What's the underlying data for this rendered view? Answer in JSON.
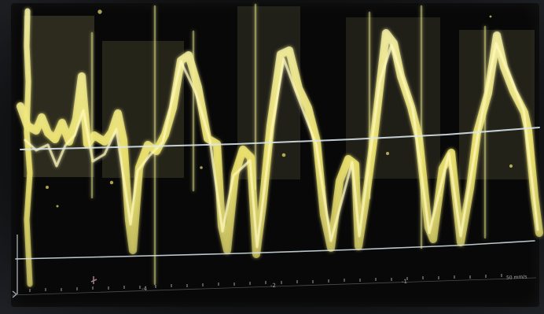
{
  "scale": {
    "tick_neg4": "-4",
    "tick_neg2": "-2",
    "tick_neg1": "-1",
    "sweep": "50 mm/s"
  },
  "colors": {
    "background": "#080808",
    "waveform": "#eee56f",
    "waveform_glow": "#fff6a8",
    "baseline": "#dbe8ee",
    "axis": "#c7d0d8"
  }
}
